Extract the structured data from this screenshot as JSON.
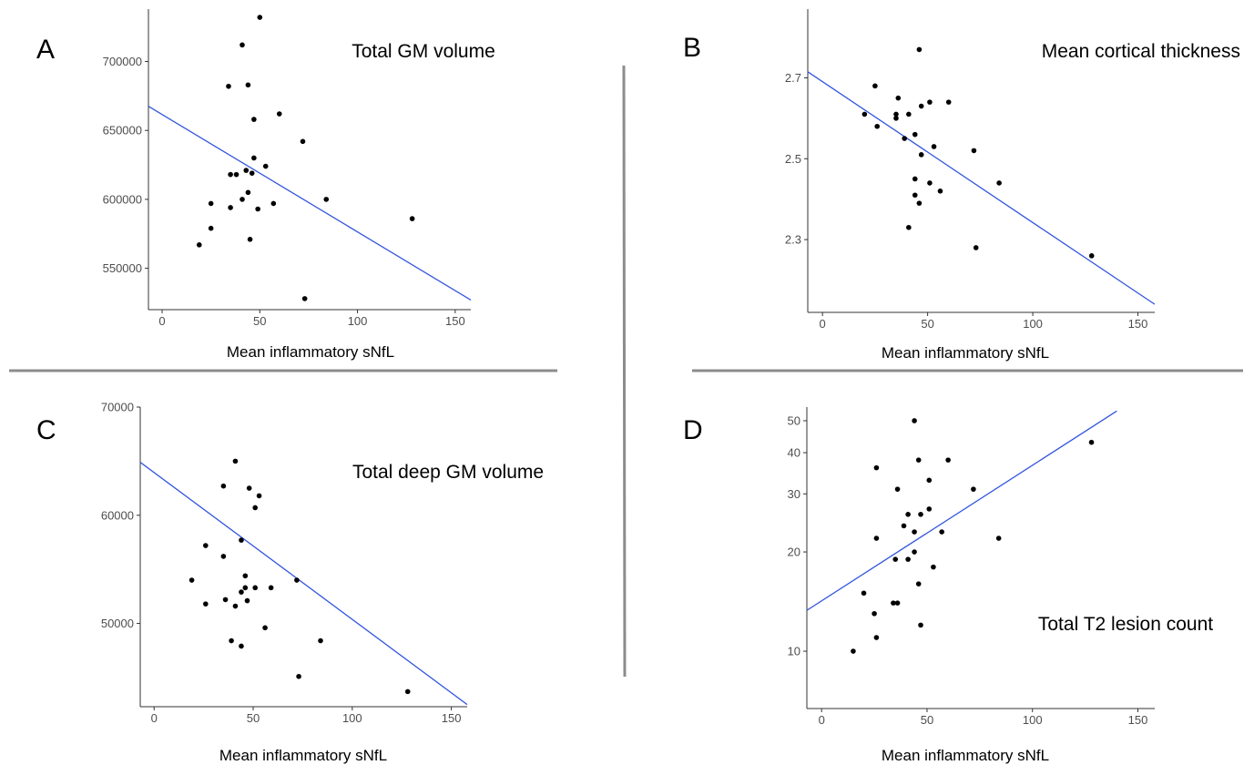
{
  "colors": {
    "fit_line": "#3355dd",
    "point": "#000000",
    "axis": "#333333",
    "divider": "#8c8c8c",
    "tick_text": "#4d4d4d"
  },
  "chart_data": [
    {
      "panel_label": "A",
      "type": "scatter",
      "title": "Total GM volume",
      "xlabel": "Mean inflammatory sNfL",
      "ylabel": "",
      "xlim": [
        -7,
        158
      ],
      "ylim": [
        520000,
        738000
      ],
      "y_scale": "linear",
      "x_ticks": [
        0,
        50,
        100,
        150
      ],
      "y_ticks": [
        550000,
        600000,
        650000,
        700000
      ],
      "x_tick_labels": [
        "0",
        "50",
        "100",
        "150"
      ],
      "y_tick_labels": [
        "550000",
        "600000",
        "650000",
        "700000"
      ],
      "grid": false,
      "points": [
        {
          "x": 50,
          "y": 732000
        },
        {
          "x": 41,
          "y": 712000
        },
        {
          "x": 44,
          "y": 683000
        },
        {
          "x": 34,
          "y": 682000
        },
        {
          "x": 60,
          "y": 662000
        },
        {
          "x": 47,
          "y": 658000
        },
        {
          "x": 72,
          "y": 642000
        },
        {
          "x": 47,
          "y": 630000
        },
        {
          "x": 53,
          "y": 624000
        },
        {
          "x": 43,
          "y": 621000
        },
        {
          "x": 46,
          "y": 619000
        },
        {
          "x": 35,
          "y": 618000
        },
        {
          "x": 38,
          "y": 618000
        },
        {
          "x": 44,
          "y": 605000
        },
        {
          "x": 84,
          "y": 600000
        },
        {
          "x": 41,
          "y": 600000
        },
        {
          "x": 25,
          "y": 597000
        },
        {
          "x": 57,
          "y": 597000
        },
        {
          "x": 35,
          "y": 594000
        },
        {
          "x": 49,
          "y": 593000
        },
        {
          "x": 128,
          "y": 586000
        },
        {
          "x": 25,
          "y": 579000
        },
        {
          "x": 45,
          "y": 571000
        },
        {
          "x": 19,
          "y": 567000
        },
        {
          "x": 73,
          "y": 528000
        }
      ],
      "fit_line": [
        {
          "x": -7,
          "y": 667500
        },
        {
          "x": 158,
          "y": 527000
        }
      ]
    },
    {
      "panel_label": "B",
      "type": "scatter",
      "title": "Mean cortical thickness",
      "xlabel": "Mean inflammatory sNfL",
      "ylabel": "",
      "xlim": [
        -7,
        158
      ],
      "ylim": [
        2.12,
        2.87
      ],
      "y_scale": "linear",
      "x_ticks": [
        0,
        50,
        100,
        150
      ],
      "y_ticks": [
        2.3,
        2.5,
        2.7
      ],
      "x_tick_labels": [
        "0",
        "50",
        "100",
        "150"
      ],
      "y_tick_labels": [
        "2.3",
        "2.5",
        "2.7"
      ],
      "grid": false,
      "points": [
        {
          "x": 46,
          "y": 2.77
        },
        {
          "x": 25,
          "y": 2.68
        },
        {
          "x": 36,
          "y": 2.65
        },
        {
          "x": 60,
          "y": 2.64
        },
        {
          "x": 51,
          "y": 2.64
        },
        {
          "x": 47,
          "y": 2.63
        },
        {
          "x": 20,
          "y": 2.61
        },
        {
          "x": 35,
          "y": 2.61
        },
        {
          "x": 41,
          "y": 2.61
        },
        {
          "x": 35,
          "y": 2.6
        },
        {
          "x": 26,
          "y": 2.58
        },
        {
          "x": 44,
          "y": 2.56
        },
        {
          "x": 39,
          "y": 2.55
        },
        {
          "x": 53,
          "y": 2.53
        },
        {
          "x": 72,
          "y": 2.52
        },
        {
          "x": 47,
          "y": 2.51
        },
        {
          "x": 44,
          "y": 2.45
        },
        {
          "x": 51,
          "y": 2.44
        },
        {
          "x": 84,
          "y": 2.44
        },
        {
          "x": 56,
          "y": 2.42
        },
        {
          "x": 44,
          "y": 2.41
        },
        {
          "x": 46,
          "y": 2.39
        },
        {
          "x": 41,
          "y": 2.33
        },
        {
          "x": 73,
          "y": 2.28
        },
        {
          "x": 128,
          "y": 2.26
        }
      ],
      "fit_line": [
        {
          "x": -7,
          "y": 2.715
        },
        {
          "x": 158,
          "y": 2.14
        }
      ]
    },
    {
      "panel_label": "C",
      "type": "scatter",
      "title": "Total deep GM volume",
      "xlabel": "Mean inflammatory sNfL",
      "ylabel": "",
      "xlim": [
        -7,
        158
      ],
      "ylim": [
        42300,
        70000
      ],
      "y_scale": "linear",
      "x_ticks": [
        0,
        50,
        100,
        150
      ],
      "y_ticks": [
        50000,
        60000,
        70000
      ],
      "x_tick_labels": [
        "0",
        "50",
        "100",
        "150"
      ],
      "y_tick_labels": [
        "50000",
        "60000",
        "70000"
      ],
      "grid": false,
      "points": [
        {
          "x": 41,
          "y": 65000
        },
        {
          "x": 35,
          "y": 62700
        },
        {
          "x": 48,
          "y": 62500
        },
        {
          "x": 53,
          "y": 61800
        },
        {
          "x": 51,
          "y": 60700
        },
        {
          "x": 44,
          "y": 57700
        },
        {
          "x": 26,
          "y": 57200
        },
        {
          "x": 35,
          "y": 56200
        },
        {
          "x": 46,
          "y": 54400
        },
        {
          "x": 72,
          "y": 54000
        },
        {
          "x": 19,
          "y": 54000
        },
        {
          "x": 46,
          "y": 53300
        },
        {
          "x": 51,
          "y": 53300
        },
        {
          "x": 59,
          "y": 53300
        },
        {
          "x": 44,
          "y": 52900
        },
        {
          "x": 36,
          "y": 52200
        },
        {
          "x": 47,
          "y": 52100
        },
        {
          "x": 26,
          "y": 51800
        },
        {
          "x": 41,
          "y": 51600
        },
        {
          "x": 56,
          "y": 49600
        },
        {
          "x": 39,
          "y": 48400
        },
        {
          "x": 84,
          "y": 48400
        },
        {
          "x": 44,
          "y": 47900
        },
        {
          "x": 73,
          "y": 45100
        },
        {
          "x": 128,
          "y": 43700
        }
      ],
      "fit_line": [
        {
          "x": -7,
          "y": 64900
        },
        {
          "x": 158,
          "y": 42500
        }
      ]
    },
    {
      "panel_label": "D",
      "type": "scatter",
      "title": "Total T2 lesion count",
      "xlabel": "Mean inflammatory sNfL",
      "ylabel": "",
      "xlim": [
        -7,
        158
      ],
      "ylim": [
        6.7,
        55
      ],
      "y_scale": "log",
      "x_ticks": [
        0,
        50,
        100,
        150
      ],
      "y_ticks": [
        10,
        20,
        30,
        40,
        50
      ],
      "x_tick_labels": [
        "0",
        "50",
        "100",
        "150"
      ],
      "y_tick_labels": [
        "10",
        "20",
        "30",
        "40",
        "50"
      ],
      "grid": false,
      "points": [
        {
          "x": 44,
          "y": 50
        },
        {
          "x": 128,
          "y": 43
        },
        {
          "x": 46,
          "y": 38
        },
        {
          "x": 60,
          "y": 38
        },
        {
          "x": 26,
          "y": 36
        },
        {
          "x": 51,
          "y": 33
        },
        {
          "x": 36,
          "y": 31
        },
        {
          "x": 72,
          "y": 31
        },
        {
          "x": 51,
          "y": 27
        },
        {
          "x": 41,
          "y": 26
        },
        {
          "x": 47,
          "y": 26
        },
        {
          "x": 39,
          "y": 24
        },
        {
          "x": 57,
          "y": 23
        },
        {
          "x": 44,
          "y": 23
        },
        {
          "x": 26,
          "y": 22
        },
        {
          "x": 84,
          "y": 22
        },
        {
          "x": 44,
          "y": 20
        },
        {
          "x": 35,
          "y": 19
        },
        {
          "x": 41,
          "y": 19
        },
        {
          "x": 53,
          "y": 18
        },
        {
          "x": 46,
          "y": 16
        },
        {
          "x": 20,
          "y": 15
        },
        {
          "x": 34,
          "y": 14
        },
        {
          "x": 36,
          "y": 14
        },
        {
          "x": 25,
          "y": 13
        },
        {
          "x": 47,
          "y": 12
        },
        {
          "x": 26,
          "y": 11
        },
        {
          "x": 15,
          "y": 10
        }
      ],
      "fit_line": [
        {
          "x": -7,
          "y": 13.3
        },
        {
          "x": 140,
          "y": 53.5
        }
      ]
    }
  ]
}
